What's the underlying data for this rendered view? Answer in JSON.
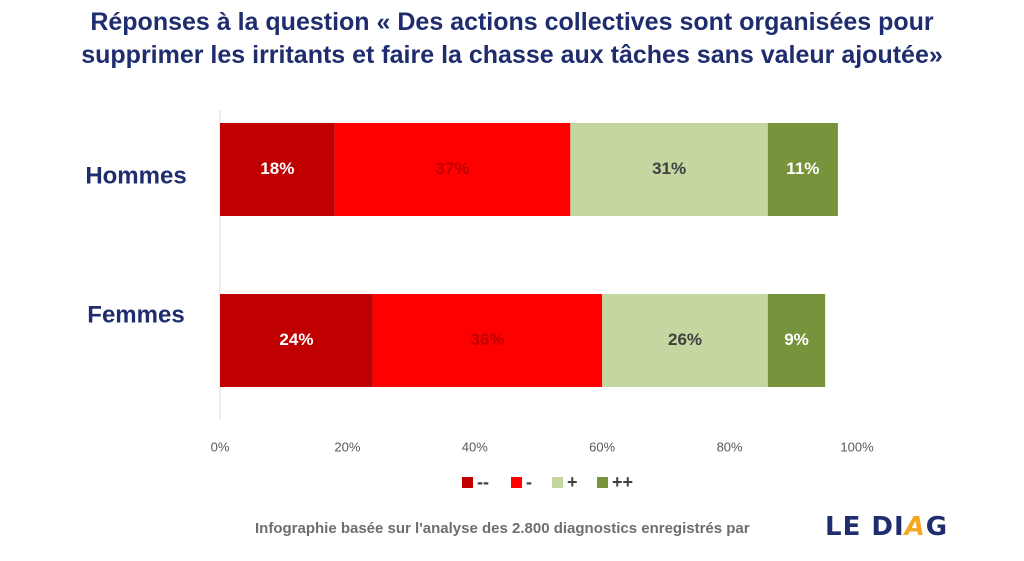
{
  "title": {
    "line1": "Réponses à la question « Des actions collectives sont organisées pour",
    "line2": "supprimer les irritants et faire la chasse aux tâches sans valeur ajoutée»"
  },
  "footer": {
    "text": "Infographie basée sur l'analyse des 2.800 diagnostics enregistrés  par",
    "brand_a": "LE DI",
    "brand_accent": "A",
    "brand_b": "G"
  },
  "chart_data": {
    "type": "bar",
    "orientation": "horizontal",
    "stacked": true,
    "categories": [
      "Hommes",
      "Femmes"
    ],
    "series": [
      {
        "name": "--",
        "color": "#c00000",
        "values": [
          18,
          24
        ],
        "labels": [
          "18%",
          "24%"
        ],
        "label_color": "#ffffff"
      },
      {
        "name": "-",
        "color": "#ff0000",
        "values": [
          37,
          36
        ],
        "labels": [
          "37%",
          "36%"
        ],
        "label_color": "#c00000"
      },
      {
        "name": "+",
        "color": "#c4d7a0",
        "values": [
          31,
          26
        ],
        "labels": [
          "31%",
          "26%"
        ],
        "label_color": "#404040"
      },
      {
        "name": "++",
        "color": "#77933c",
        "values": [
          11,
          9
        ],
        "labels": [
          "11%",
          "9%"
        ],
        "label_color": "#ffffff"
      }
    ],
    "x_ticks": [
      "0%",
      "20%",
      "40%",
      "60%",
      "80%",
      "100%"
    ],
    "xlim": [
      0,
      100
    ],
    "legend": "bottom",
    "grid": false
  }
}
